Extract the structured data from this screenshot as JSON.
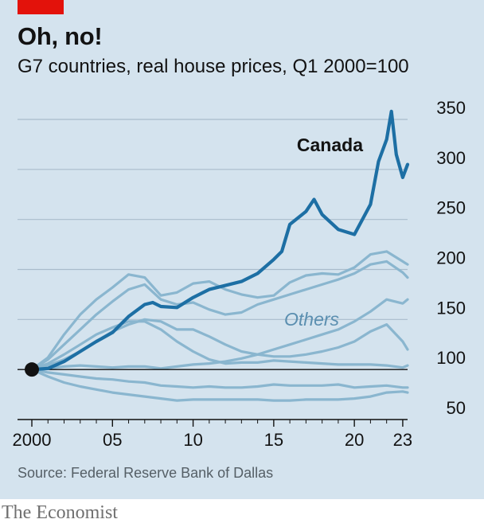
{
  "header": {
    "title": "Oh, no!",
    "subtitle": "G7 countries, real house prices, Q1 2000=100"
  },
  "footer": {
    "source": "Source: Federal Reserve Bank of Dallas",
    "brand": "The Economist"
  },
  "colors": {
    "background": "#d4e3ee",
    "canada": "#1d6fa4",
    "others": "#8ab6cf",
    "accent": "#e3120b",
    "baseline": "#121212",
    "grid": "#a9bccb"
  },
  "chart_data": {
    "type": "line",
    "title": "Oh, no!",
    "subtitle": "G7 countries, real house prices, Q1 2000=100",
    "xlabel": "",
    "ylabel": "",
    "xlim": [
      2000,
      2023.3
    ],
    "ylim": [
      50,
      350
    ],
    "x_ticks": [
      {
        "value": 2000,
        "label": "2000"
      },
      {
        "value": 2005,
        "label": "05"
      },
      {
        "value": 2010,
        "label": "10"
      },
      {
        "value": 2015,
        "label": "15"
      },
      {
        "value": 2020,
        "label": "20"
      },
      {
        "value": 2023,
        "label": "23"
      }
    ],
    "y_ticks": [
      50,
      100,
      150,
      200,
      250,
      300,
      350
    ],
    "grid": "horizontal",
    "baseline": 100,
    "annotations": [
      {
        "text": "Canada",
        "series": "Canada"
      },
      {
        "text": "Others",
        "series": "Others"
      }
    ],
    "series": [
      {
        "name": "Canada",
        "highlight": true,
        "x": [
          2000,
          2001,
          2002,
          2003,
          2004,
          2005,
          2006,
          2007,
          2007.5,
          2008,
          2009,
          2010,
          2011,
          2012,
          2013,
          2014,
          2015,
          2015.5,
          2016,
          2017,
          2017.5,
          2018,
          2019,
          2020,
          2021,
          2021.5,
          2022,
          2022.3,
          2022.6,
          2023,
          2023.3
        ],
        "y": [
          100,
          101,
          108,
          118,
          128,
          137,
          153,
          165,
          167,
          163,
          162,
          172,
          180,
          184,
          188,
          196,
          210,
          218,
          245,
          258,
          270,
          255,
          240,
          235,
          265,
          308,
          330,
          358,
          315,
          292,
          305
        ]
      },
      {
        "name": "Others",
        "x": [
          2000,
          2001,
          2002,
          2003,
          2004,
          2005,
          2006,
          2007,
          2008,
          2009,
          2010,
          2011,
          2012,
          2013,
          2014,
          2015,
          2016,
          2017,
          2018,
          2019,
          2020,
          2021,
          2022,
          2023,
          2023.3
        ],
        "y": [
          100,
          112,
          135,
          155,
          170,
          182,
          195,
          192,
          174,
          177,
          186,
          188,
          180,
          175,
          172,
          174,
          187,
          194,
          196,
          195,
          202,
          215,
          218,
          208,
          205
        ]
      },
      {
        "name": "Others",
        "x": [
          2000,
          2001,
          2002,
          2003,
          2004,
          2005,
          2006,
          2007,
          2008,
          2009,
          2010,
          2011,
          2012,
          2013,
          2014,
          2015,
          2016,
          2017,
          2018,
          2019,
          2020,
          2021,
          2022,
          2023,
          2023.3
        ],
        "y": [
          100,
          110,
          125,
          140,
          155,
          168,
          180,
          185,
          170,
          165,
          167,
          160,
          155,
          157,
          165,
          170,
          175,
          180,
          185,
          190,
          196,
          205,
          208,
          197,
          192
        ]
      },
      {
        "name": "Others",
        "x": [
          2000,
          2001,
          2002,
          2003,
          2004,
          2005,
          2006,
          2007,
          2008,
          2009,
          2010,
          2011,
          2012,
          2013,
          2014,
          2015,
          2016,
          2017,
          2018,
          2019,
          2020,
          2021,
          2022,
          2023,
          2023.3
        ],
        "y": [
          100,
          101,
          103,
          104,
          103,
          102,
          103,
          103,
          101,
          103,
          105,
          106,
          108,
          111,
          115,
          120,
          125,
          130,
          135,
          140,
          148,
          158,
          170,
          166,
          170
        ]
      },
      {
        "name": "Others",
        "x": [
          2000,
          2001,
          2002,
          2003,
          2004,
          2005,
          2006,
          2007,
          2008,
          2009,
          2010,
          2011,
          2012,
          2013,
          2014,
          2015,
          2016,
          2017,
          2018,
          2019,
          2020,
          2021,
          2022,
          2023,
          2023.3
        ],
        "y": [
          100,
          104,
          110,
          118,
          128,
          138,
          145,
          150,
          148,
          140,
          140,
          133,
          125,
          118,
          115,
          113,
          113,
          115,
          118,
          122,
          128,
          138,
          145,
          128,
          120
        ]
      },
      {
        "name": "Others",
        "x": [
          2000,
          2001,
          2002,
          2003,
          2004,
          2005,
          2006,
          2007,
          2008,
          2009,
          2010,
          2011,
          2012,
          2013,
          2014,
          2015,
          2016,
          2017,
          2018,
          2019,
          2020,
          2021,
          2022,
          2023,
          2023.3
        ],
        "y": [
          100,
          106,
          115,
          125,
          135,
          142,
          148,
          148,
          140,
          128,
          118,
          110,
          106,
          107,
          107,
          109,
          108,
          107,
          106,
          105,
          105,
          105,
          104,
          102,
          104
        ]
      },
      {
        "name": "Others",
        "x": [
          2000,
          2001,
          2002,
          2003,
          2004,
          2005,
          2006,
          2007,
          2008,
          2009,
          2010,
          2011,
          2012,
          2013,
          2014,
          2015,
          2016,
          2017,
          2018,
          2019,
          2020,
          2021,
          2022,
          2023,
          2023.3
        ],
        "y": [
          100,
          97,
          95,
          93,
          91,
          90,
          88,
          87,
          84,
          83,
          82,
          83,
          82,
          82,
          83,
          85,
          84,
          84,
          84,
          85,
          82,
          83,
          84,
          82,
          82
        ]
      },
      {
        "name": "Others",
        "x": [
          2000,
          2001,
          2002,
          2003,
          2004,
          2005,
          2006,
          2007,
          2008,
          2009,
          2010,
          2011,
          2012,
          2013,
          2014,
          2015,
          2016,
          2017,
          2018,
          2019,
          2020,
          2021,
          2022,
          2023,
          2023.3
        ],
        "y": [
          100,
          93,
          87,
          83,
          80,
          77,
          75,
          73,
          71,
          69,
          70,
          70,
          70,
          70,
          70,
          69,
          69,
          70,
          70,
          70,
          71,
          73,
          77,
          78,
          77
        ]
      }
    ]
  }
}
